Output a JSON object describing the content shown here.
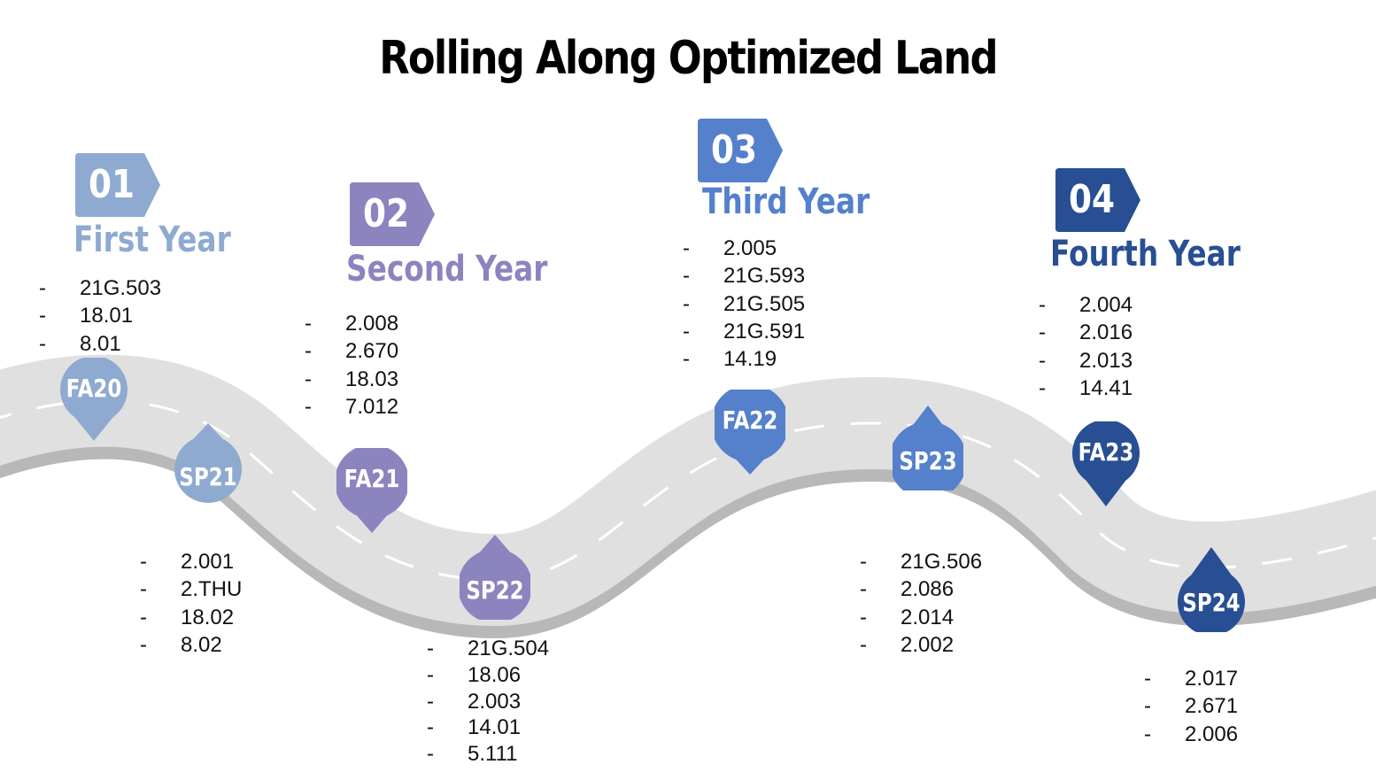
{
  "title": "Rolling Along Optimized Land",
  "colors": {
    "year1": "#8eaad0",
    "year2": "#8b84bf",
    "year3": "#5480cc",
    "year4": "#284f94",
    "road": "#e0e0e0",
    "road_edge": "#b8b8b8",
    "dash": "#ffffff"
  },
  "years": [
    {
      "number": "01",
      "name": "First Year",
      "courses": [
        "21G.503",
        "18.01",
        "8.01"
      ]
    },
    {
      "number": "02",
      "name": "Second Year",
      "courses": [
        "2.008",
        "2.670",
        "18.03",
        "7.012"
      ]
    },
    {
      "number": "03",
      "name": "Third Year",
      "courses": [
        "2.005",
        "21G.593",
        "21G.505",
        "21G.591",
        "14.19"
      ]
    },
    {
      "number": "04",
      "name": "Fourth Year",
      "courses": [
        "2.004",
        "2.016",
        "2.013",
        "14.41"
      ]
    }
  ],
  "terms": [
    {
      "label": "FA20",
      "pointer": "down"
    },
    {
      "label": "SP21",
      "pointer": "up",
      "courses": [
        "2.001",
        "2.THU",
        "18.02",
        "8.02"
      ]
    },
    {
      "label": "FA21",
      "pointer": "down"
    },
    {
      "label": "SP22",
      "pointer": "up",
      "courses": [
        "21G.504",
        "18.06",
        "2.003",
        "14.01",
        "5.111"
      ]
    },
    {
      "label": "FA22",
      "pointer": "down"
    },
    {
      "label": "SP23",
      "pointer": "up",
      "courses": [
        "21G.506",
        "2.086",
        "2.014",
        "2.002"
      ]
    },
    {
      "label": "FA23",
      "pointer": "down"
    },
    {
      "label": "SP24",
      "pointer": "up",
      "courses": [
        "2.017",
        "2.671",
        "2.006"
      ]
    }
  ]
}
